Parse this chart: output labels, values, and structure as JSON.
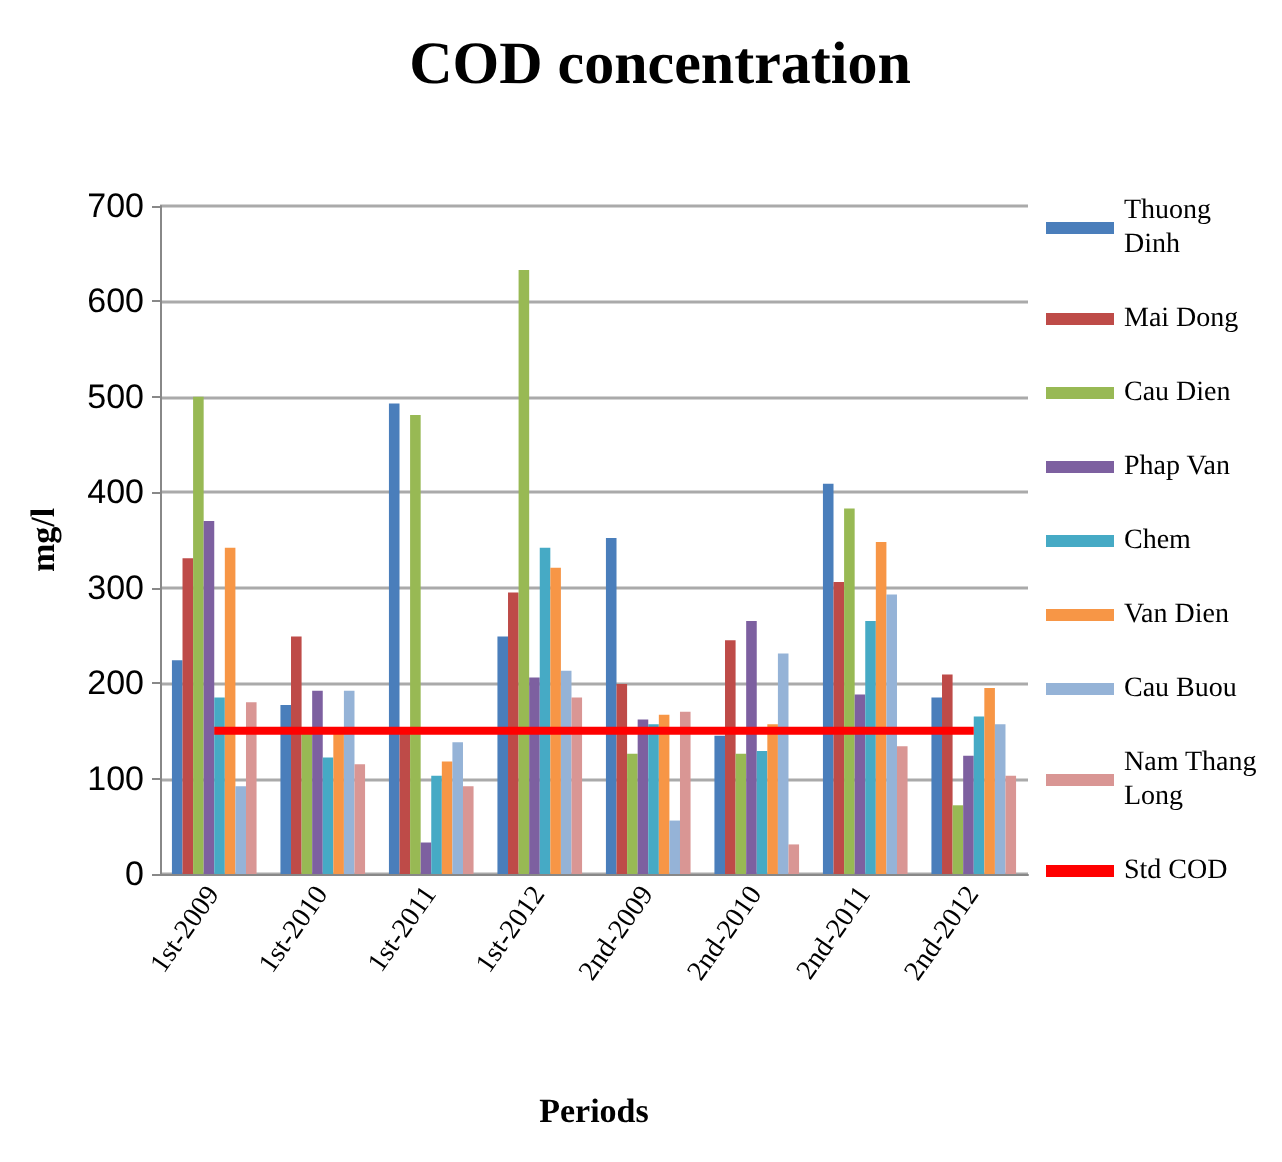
{
  "chart_data": {
    "type": "bar",
    "title": "COD concentration",
    "xlabel": "Periods",
    "ylabel": "mg/l",
    "categories": [
      "1st-2009",
      "1st-2010",
      "1st-2011",
      "1st-2012",
      "2nd-2009",
      "2nd-2010",
      "2nd-2011",
      "2nd-2012"
    ],
    "series": [
      {
        "name": "Thuong Dinh",
        "color": "#4a7ebb",
        "values": [
          224,
          177,
          493,
          249,
          352,
          145,
          409,
          185
        ]
      },
      {
        "name": "Mai Dong",
        "color": "#be4b48",
        "values": [
          331,
          249,
          150,
          295,
          199,
          245,
          306,
          209
        ]
      },
      {
        "name": "Cau Dien",
        "color": "#98b954",
        "values": [
          500,
          150,
          481,
          633,
          126,
          126,
          383,
          72
        ]
      },
      {
        "name": "Phap Van",
        "color": "#7d60a0",
        "values": [
          370,
          192,
          33,
          206,
          162,
          265,
          188,
          124
        ]
      },
      {
        "name": "Chem",
        "color": "#46aac5",
        "values": [
          185,
          122,
          103,
          342,
          157,
          129,
          265,
          165
        ]
      },
      {
        "name": "Van Dien",
        "color": "#f79646",
        "values": [
          342,
          150,
          118,
          321,
          167,
          157,
          348,
          195
        ]
      },
      {
        "name": "Cau Buou",
        "color": "#95b3d7",
        "values": [
          92,
          192,
          138,
          213,
          56,
          231,
          293,
          157
        ]
      },
      {
        "name": "Nam Thang Long",
        "color": "#d99694",
        "values": [
          180,
          115,
          92,
          185,
          170,
          31,
          134,
          103
        ]
      },
      {
        "name": "Std COD",
        "type": "line",
        "color": "#ff0000",
        "values": [
          150,
          150,
          150,
          150,
          150,
          150,
          150,
          150
        ]
      }
    ],
    "ylim": [
      0,
      700
    ],
    "yticks": [
      0,
      100,
      200,
      300,
      400,
      500,
      600,
      700
    ],
    "grid": "y",
    "legend": "right",
    "marker": "none"
  }
}
